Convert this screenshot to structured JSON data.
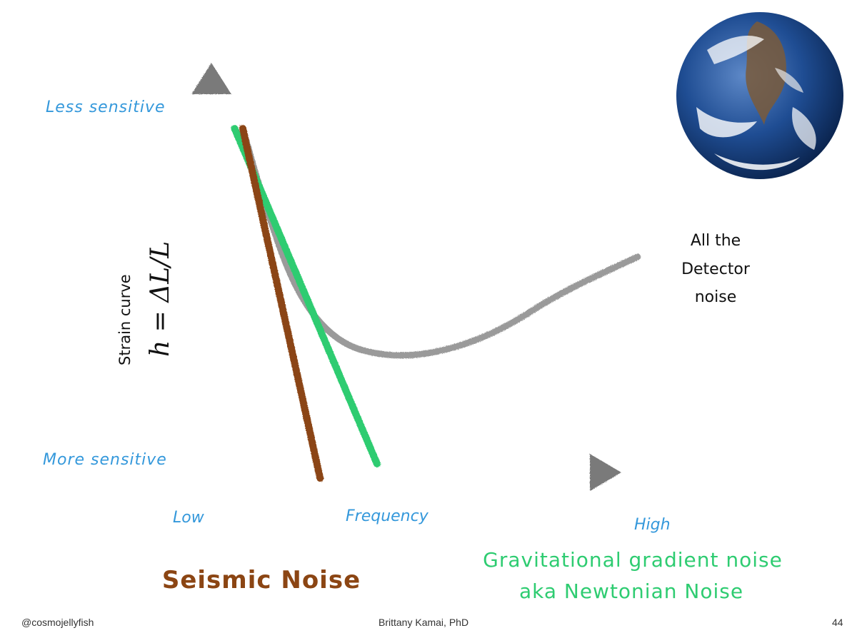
{
  "chart_data": {
    "type": "line",
    "title": "",
    "xlabel": "Frequency",
    "ylabel_text": "Strain curve",
    "ylabel_formula": "h = ΔL/L",
    "x_tick_labels": [
      "Low",
      "High"
    ],
    "y_tick_labels": [
      "Less sensitive",
      "More sensitive"
    ],
    "x_range": [
      0,
      1
    ],
    "y_range": [
      0,
      1
    ],
    "grid": false,
    "series": [
      {
        "name": "All the Detector noise",
        "label_lines": [
          "All the",
          "Detector",
          "noise"
        ],
        "color": "#9a9a9a",
        "x": [
          0.07,
          0.12,
          0.2,
          0.3,
          0.42,
          0.55,
          0.7,
          0.85,
          1.04
        ],
        "y": [
          0.96,
          0.76,
          0.5,
          0.36,
          0.32,
          0.33,
          0.39,
          0.5,
          0.6
        ]
      },
      {
        "name": "Gravitational gradient noise",
        "label_lines": [
          "Gravitational gradient noise",
          "aka Newtonian Noise"
        ],
        "color": "#2ecc71",
        "x": [
          0.05,
          0.4
        ],
        "y": [
          0.96,
          0.02
        ]
      },
      {
        "name": "Seismic Noise",
        "label_lines": [
          "Seismic Noise"
        ],
        "color": "#8b4513",
        "x": [
          0.07,
          0.26
        ],
        "y": [
          0.96,
          -0.02
        ]
      }
    ]
  },
  "colors": {
    "axis": "#7a7a7a",
    "tick_label": "#3498db",
    "seismic_label": "#8b4513",
    "newtonian_label": "#2ecc71"
  },
  "image": {
    "icon": "earth-globe-icon"
  },
  "footer": {
    "left": "@cosmojellyfish",
    "center": "Brittany Kamai, PhD",
    "right": "44"
  }
}
